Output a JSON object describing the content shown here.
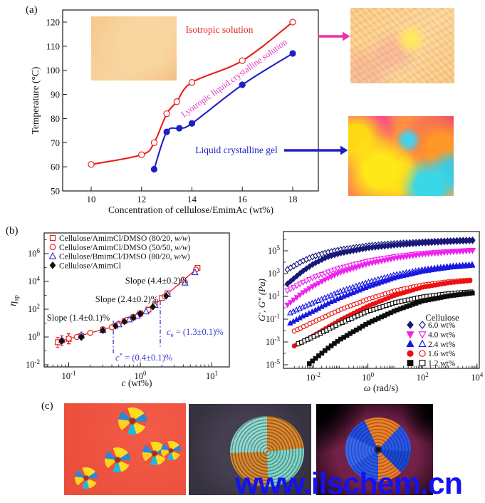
{
  "figure": {
    "panel_labels": {
      "a": "(a)",
      "b": "(b)",
      "c": "(c)"
    },
    "watermark": "www.ilschem.cn",
    "colors": {
      "red": "#e8201c",
      "blue": "#1f1fc8",
      "magenta_label": "#e43cc0",
      "magenta_arrow": "#f030a8",
      "navy": "#18187a",
      "magenta": "#ee22ee",
      "bright_blue": "#1818e0",
      "black": "#0d0d0d",
      "annotation_blue": "#3a3ad0",
      "watermark_blue": "#1512f0",
      "axis": "#1a1a1a"
    }
  },
  "chart_data": [
    {
      "id": "phase-diagram",
      "type": "line",
      "xlabel": "Concentration of cellulose/EmimAc (wt%)",
      "ylabel": "Temperature (°C)",
      "x_ticks": [
        10,
        12,
        14,
        16,
        18
      ],
      "y_ticks": [
        50,
        60,
        70,
        80,
        90,
        100,
        110,
        120
      ],
      "xlim": [
        8.9,
        19.1
      ],
      "ylim": [
        50,
        125
      ],
      "series": [
        {
          "name": "isotropic-boundary",
          "color": "#e8201c",
          "marker": "circle",
          "filled": false,
          "points": [
            [
              10,
              61
            ],
            [
              12,
              65
            ],
            [
              12.5,
              70
            ],
            [
              13,
              82
            ],
            [
              13.4,
              87
            ],
            [
              14,
              95
            ],
            [
              16,
              104
            ],
            [
              18,
              120
            ]
          ]
        },
        {
          "name": "gel-boundary",
          "color": "#1f1fc8",
          "marker": "circle",
          "filled": true,
          "points": [
            [
              12.5,
              59
            ],
            [
              13,
              74.5
            ],
            [
              13.5,
              76
            ],
            [
              14,
              78
            ],
            [
              16,
              94
            ],
            [
              18,
              107
            ]
          ]
        }
      ],
      "annotations": {
        "isotropic": "Isotropic solution",
        "lyotropic": "Lyotropic liquid crystalline solution",
        "gel": "Liquid crystalline gel"
      }
    },
    {
      "id": "specific-viscosity",
      "type": "scatter",
      "xlabel_italic": "c",
      "xlabel_rest": " (wt%)",
      "ylabel_main": "η",
      "ylabel_sub": "sp",
      "x_ticks_exp": [
        -1,
        0,
        1
      ],
      "y_ticks_exp": [
        -2,
        0,
        2,
        4,
        6
      ],
      "fit": {
        "start_c": 0.07,
        "start_eta": 0.45,
        "c_star": 0.4,
        "c_e": 1.3,
        "slopes": [
          1.4,
          2.4,
          4.4
        ],
        "sample_range": [
          0.065,
          7.1
        ]
      },
      "legend": [
        {
          "marker": "square",
          "filled": false,
          "color": "#e8201c",
          "label": "Cellulose/AmimCl/DMSO (80/20, w/w)"
        },
        {
          "marker": "circle",
          "filled": false,
          "color": "#e8201c",
          "label": "Cellulose/AmimCl/DMSO (50/50, w/w)"
        },
        {
          "marker": "triangle",
          "filled": false,
          "color": "#3333cc",
          "label": "Cellulose/BmimCl/DMSO (80/20, w/w)"
        },
        {
          "marker": "diamond",
          "filled": true,
          "color": "#111111",
          "label": "Cellulose/AmimCl"
        }
      ],
      "series": [
        {
          "name": "amimcl-dmso-8020",
          "marker": "square",
          "filled": false,
          "color": "#e8201c",
          "points": [
            [
              0.07,
              0.42
            ],
            [
              0.1,
              0.72
            ],
            [
              0.15,
              1.2
            ],
            [
              0.3,
              3.1
            ],
            [
              0.45,
              6.4
            ],
            [
              0.6,
              14
            ],
            [
              0.8,
              26
            ],
            [
              1.0,
              50
            ],
            [
              1.3,
              95
            ],
            [
              2.0,
              640
            ],
            [
              2.4,
              1400
            ],
            [
              6.3,
              95000
            ]
          ]
        },
        {
          "name": "amimcl-dmso-5050",
          "marker": "circle",
          "filled": false,
          "color": "#e8201c",
          "points": [
            [
              0.08,
              0.55
            ],
            [
              0.1,
              0.78
            ],
            [
              0.13,
              1.0
            ],
            [
              0.2,
              2.0
            ],
            [
              0.3,
              3.6
            ],
            [
              0.4,
              5.0
            ],
            [
              0.5,
              9.2
            ],
            [
              0.65,
              17
            ],
            [
              0.8,
              28
            ],
            [
              1.0,
              44
            ],
            [
              1.3,
              90
            ],
            [
              1.6,
              230
            ],
            [
              2.2,
              830
            ],
            [
              4.0,
              13000
            ],
            [
              6.0,
              70000
            ]
          ]
        },
        {
          "name": "bmimcl-dmso-8020",
          "marker": "triangle",
          "filled": false,
          "color": "#3333cc",
          "points": [
            [
              0.08,
              0.6
            ],
            [
              0.15,
              1.4
            ],
            [
              0.3,
              3.2
            ],
            [
              0.5,
              8.0
            ],
            [
              0.7,
              18
            ],
            [
              0.9,
              33
            ],
            [
              1.2,
              68
            ],
            [
              1.6,
              200
            ],
            [
              2.4,
              1200
            ],
            [
              4.2,
              8000
            ],
            [
              5.8,
              45000
            ]
          ]
        },
        {
          "name": "amimcl",
          "marker": "diamond",
          "filled": true,
          "color": "#111111",
          "points": [
            [
              0.08,
              0.5
            ],
            [
              0.15,
              0.95
            ],
            [
              0.3,
              3.0
            ],
            [
              0.45,
              6.2
            ],
            [
              0.6,
              13
            ],
            [
              0.8,
              25
            ],
            [
              1.0,
              48
            ],
            [
              1.5,
              150
            ],
            [
              2.3,
              900
            ]
          ]
        }
      ],
      "annotations": {
        "slope_high": "Slope (4.4±0.2)%",
        "slope_mid": "Slope (2.4±0.2)%",
        "slope_low": "Slope (1.4±0.1)%",
        "ce": {
          "pre": "c",
          "sub": "e",
          "rest": " = (1.3±0.1)%"
        },
        "cstar": {
          "pre": "c",
          "sup": "*",
          "rest": " = (0.4±0.1)%"
        }
      }
    },
    {
      "id": "dynamic-moduli",
      "type": "scatter",
      "xlabel_italic": "ω",
      "xlabel_rest": " (rad/s)",
      "ylabel": "G′, G″ (Pa)",
      "x_ticks_exp": [
        -2,
        0,
        2,
        4
      ],
      "y_ticks_exp": [
        5,
        3,
        1,
        -1,
        -3,
        -5
      ],
      "legend_header": "Cellulose",
      "legend": [
        {
          "marker": "diamond",
          "color": "#18187a",
          "label": "6.0 wt%"
        },
        {
          "marker": "tri-down",
          "color": "#ee22ee",
          "label": "4.0 wt%"
        },
        {
          "marker": "triangle",
          "color": "#1818e0",
          "label": "2.4 wt%"
        },
        {
          "marker": "circle",
          "color": "#ee1111",
          "label": "1.6 wt%"
        },
        {
          "marker": "square",
          "color": "#0d0d0d",
          "label": "1.2 wt%"
        }
      ],
      "series": [
        {
          "name": "6.0wt-Gpp",
          "marker": "diamond",
          "filled": false,
          "color": "#18187a",
          "anchors": [
            [
              -2.95,
              3.35
            ],
            [
              -2.4,
              4.1
            ],
            [
              -2,
              4.5
            ],
            [
              -1.5,
              4.85
            ],
            [
              -1,
              5.1
            ],
            [
              0,
              5.45
            ],
            [
              1,
              5.65
            ],
            [
              2,
              5.78
            ],
            [
              3,
              5.88
            ],
            [
              3.85,
              5.95
            ]
          ]
        },
        {
          "name": "6.0wt-Gp",
          "marker": "diamond",
          "filled": true,
          "color": "#18187a",
          "anchors": [
            [
              -2.95,
              2.1
            ],
            [
              -2.4,
              3.2
            ],
            [
              -2,
              3.85
            ],
            [
              -1.5,
              4.45
            ],
            [
              -1,
              4.8
            ],
            [
              0,
              5.25
            ],
            [
              1,
              5.5
            ],
            [
              2,
              5.68
            ],
            [
              3,
              5.8
            ],
            [
              3.85,
              5.88
            ]
          ]
        },
        {
          "name": "4.0wt-Gpp",
          "marker": "tri-down",
          "filled": false,
          "color": "#ee22ee",
          "anchors": [
            [
              -2.95,
              1.5
            ],
            [
              -2.4,
              2.2
            ],
            [
              -2,
              2.65
            ],
            [
              -1.5,
              3.1
            ],
            [
              -1,
              3.5
            ],
            [
              0,
              4.1
            ],
            [
              1,
              4.5
            ],
            [
              2,
              4.78
            ],
            [
              3,
              4.95
            ],
            [
              3.85,
              5.05
            ]
          ]
        },
        {
          "name": "4.0wt-Gp",
          "marker": "tri-down",
          "filled": true,
          "color": "#ee22ee",
          "anchors": [
            [
              -2.95,
              0.25
            ],
            [
              -2.4,
              1.3
            ],
            [
              -2,
              1.9
            ],
            [
              -1.5,
              2.55
            ],
            [
              -1,
              3.1
            ],
            [
              0,
              3.85
            ],
            [
              1,
              4.35
            ],
            [
              2,
              4.68
            ],
            [
              3,
              4.88
            ],
            [
              3.85,
              5.0
            ]
          ]
        },
        {
          "name": "2.4wt-Gpp",
          "marker": "triangle",
          "filled": false,
          "color": "#1818e0",
          "anchors": [
            [
              -2.85,
              -0.45
            ],
            [
              -2.4,
              0.05
            ],
            [
              -2,
              0.45
            ],
            [
              -1.5,
              0.95
            ],
            [
              -1,
              1.45
            ],
            [
              0,
              2.25
            ],
            [
              1,
              2.9
            ],
            [
              2,
              3.35
            ],
            [
              3,
              3.65
            ],
            [
              3.85,
              3.8
            ]
          ]
        },
        {
          "name": "2.4wt-Gp",
          "marker": "triangle",
          "filled": true,
          "color": "#1818e0",
          "anchors": [
            [
              -2.85,
              -1.35
            ],
            [
              -2.4,
              -0.75
            ],
            [
              -2,
              -0.3
            ],
            [
              -1.5,
              0.35
            ],
            [
              -1,
              0.9
            ],
            [
              0,
              1.85
            ],
            [
              1,
              2.65
            ],
            [
              2,
              3.2
            ],
            [
              3,
              3.55
            ],
            [
              3.85,
              3.72
            ]
          ]
        },
        {
          "name": "1.6wt-Gpp",
          "marker": "circle",
          "filled": false,
          "color": "#ee1111",
          "anchors": [
            [
              -2.7,
              -2.05
            ],
            [
              -2,
              -1.25
            ],
            [
              -1.5,
              -0.7
            ],
            [
              -1,
              -0.15
            ],
            [
              0,
              0.75
            ],
            [
              1,
              1.5
            ],
            [
              2,
              2.0
            ],
            [
              3,
              2.3
            ],
            [
              3.85,
              2.45
            ]
          ]
        },
        {
          "name": "1.6wt-Gp",
          "marker": "circle",
          "filled": true,
          "color": "#ee1111",
          "anchors": [
            [
              -2.7,
              -3.35
            ],
            [
              -2,
              -2.45
            ],
            [
              -1.5,
              -1.75
            ],
            [
              -1,
              -1.05
            ],
            [
              0,
              0.15
            ],
            [
              1,
              1.1
            ],
            [
              2,
              1.8
            ],
            [
              3,
              2.2
            ],
            [
              3.85,
              2.4
            ]
          ]
        },
        {
          "name": "1.2wt-Gpp",
          "marker": "square",
          "filled": false,
          "color": "#0d0d0d",
          "anchors": [
            [
              -2.55,
              -3.15
            ],
            [
              -2,
              -2.55
            ],
            [
              -1.5,
              -1.95
            ],
            [
              -1,
              -1.35
            ],
            [
              0,
              -0.3
            ],
            [
              1,
              0.45
            ],
            [
              2,
              0.95
            ],
            [
              3,
              1.25
            ],
            [
              3.85,
              1.4
            ]
          ]
        },
        {
          "name": "1.2wt-Gp",
          "marker": "square",
          "filled": true,
          "color": "#0d0d0d",
          "anchors": [
            [
              -2.15,
              -4.9
            ],
            [
              -1.5,
              -3.6
            ],
            [
              -1,
              -2.75
            ],
            [
              0,
              -1.35
            ],
            [
              1,
              -0.25
            ],
            [
              2,
              0.6
            ],
            [
              3,
              1.05
            ],
            [
              3.85,
              1.3
            ]
          ]
        }
      ]
    }
  ],
  "micrographs": {
    "c1_spherulites": [
      [
        0.56,
        0.2,
        40
      ],
      [
        0.44,
        0.62,
        36
      ],
      [
        0.74,
        0.55,
        34
      ],
      [
        0.875,
        0.52,
        28
      ],
      [
        0.18,
        0.82,
        32
      ]
    ],
    "c1_background": "#f2503c",
    "c2_background": "#3a3642",
    "c3_background": "#722148"
  }
}
